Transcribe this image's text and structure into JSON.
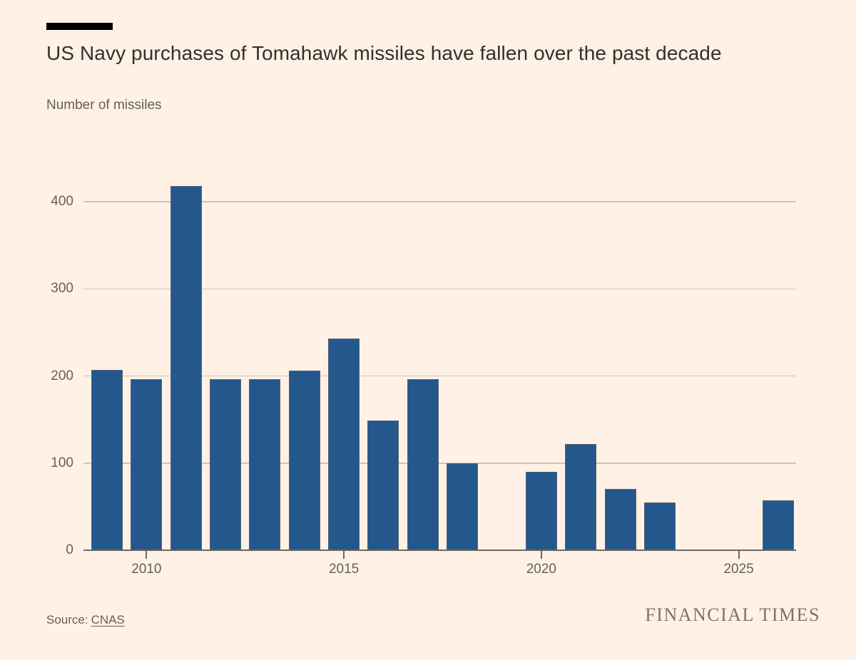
{
  "header": {
    "title": "US Navy purchases of Tomahawk missiles have fallen over the past decade",
    "subtitle": "Number of missiles"
  },
  "footer": {
    "source_label": "Source:",
    "source_name": "CNAS",
    "brand": "FINANCIAL TIMES"
  },
  "colors": {
    "background": "#FFF1E5",
    "bar": "#24578C",
    "gridline": "#CFC4BA",
    "axis": "#6E6761",
    "text_primary": "#33302E",
    "text_muted": "#66605C",
    "brand_text": "#7C7368",
    "accent_bar": "#000000"
  },
  "chart_data": {
    "type": "bar",
    "title": "US Navy purchases of Tomahawk missiles have fallen over the past decade",
    "subtitle": "Number of missiles",
    "xlabel": "",
    "ylabel": "Number of missiles",
    "categories": [
      2009,
      2010,
      2011,
      2012,
      2013,
      2014,
      2015,
      2016,
      2017,
      2018,
      2019,
      2020,
      2021,
      2022,
      2023,
      2024,
      2025,
      2026
    ],
    "values": [
      207,
      196,
      418,
      196,
      196,
      206,
      243,
      149,
      196,
      100,
      0,
      90,
      122,
      70,
      55,
      0,
      0,
      57
    ],
    "yticks": [
      0,
      100,
      200,
      300,
      400
    ],
    "xtick_labels": [
      2010,
      2015,
      2020,
      2025
    ],
    "ylim": [
      0,
      427
    ],
    "grid": true,
    "legend": false,
    "bar_color": "#24578C",
    "background_color": "#FFF1E5"
  }
}
